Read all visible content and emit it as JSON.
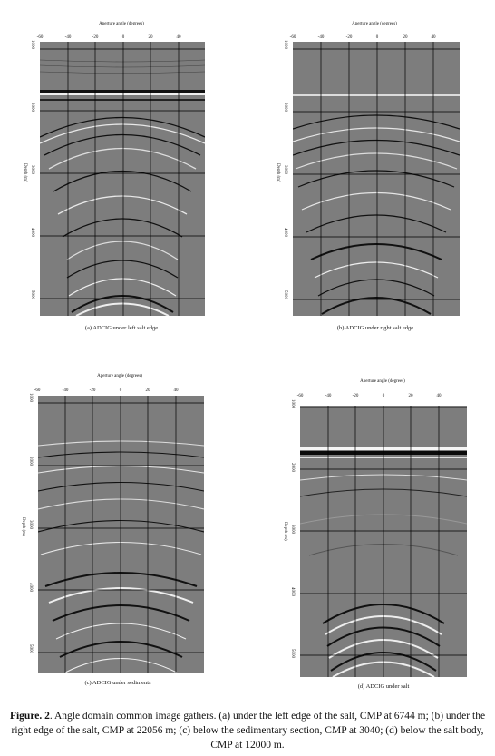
{
  "figure_caption": {
    "label": "Figure. 2",
    "text": ". Angle domain common image gathers. (a) under the left edge of the salt, CMP at 6744 m; (b) under the right edge of the salt, CMP at 22056 m; (c) below the sedimentary section, CMP at 3040; (d) below the salt body, CMP at 12000 m."
  },
  "x_title": "Aperture angle (degrees)",
  "y_label": "Depth (m)",
  "x_ticks": [
    "-60",
    "-40",
    "-20",
    "0",
    "20",
    "40"
  ],
  "panels": [
    {
      "caption": "(a) ADCIG under left salt edge",
      "y_ticks": [
        "1000",
        "2000",
        "3000",
        "4000",
        "5000"
      ]
    },
    {
      "caption": "(b) ADCIG under right salt edge",
      "y_ticks": [
        "1000",
        "2000",
        "3000",
        "4000",
        "5000"
      ]
    },
    {
      "caption": "(c) ADCIG under sediments",
      "y_ticks": [
        "1000",
        "2000",
        "3000",
        "4000",
        "5000"
      ]
    },
    {
      "caption": "(d) ADCIG under salt",
      "y_ticks": [
        "1000",
        "2000",
        "3000",
        "4000",
        "5000"
      ]
    }
  ]
}
